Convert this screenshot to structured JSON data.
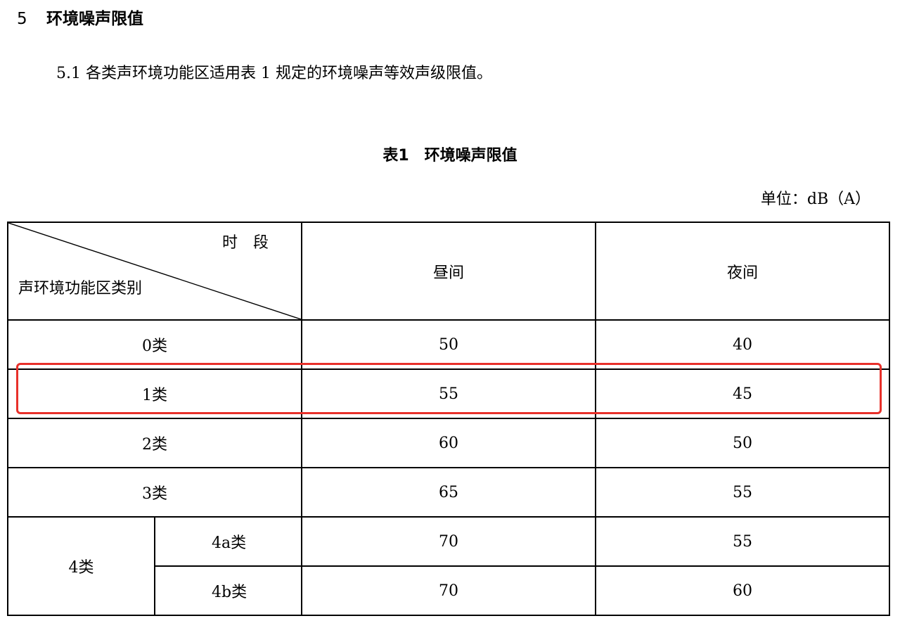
{
  "section": {
    "number": "5",
    "title": "环境噪声限值"
  },
  "clause": {
    "text": "5.1 各类声环境功能区适用表 1 规定的环境噪声等效声级限值。"
  },
  "table_caption": "表1　环境噪声限值",
  "unit": "单位：dB（A）",
  "table": {
    "header": {
      "diagonal_top": "时　段",
      "diagonal_bottom": "声环境功能区类别",
      "day": "昼间",
      "night": "夜间"
    },
    "rows": [
      {
        "category": "0类",
        "day": "50",
        "night": "40"
      },
      {
        "category": "1类",
        "day": "55",
        "night": "45"
      },
      {
        "category": "2类",
        "day": "60",
        "night": "50"
      },
      {
        "category": "3类",
        "day": "65",
        "night": "55"
      }
    ],
    "group4": {
      "label": "4类",
      "sub": [
        {
          "category": "4a类",
          "day": "70",
          "night": "55"
        },
        {
          "category": "4b类",
          "day": "70",
          "night": "60"
        }
      ]
    }
  },
  "highlight": {
    "row": "1类",
    "color": "#e8302a"
  }
}
